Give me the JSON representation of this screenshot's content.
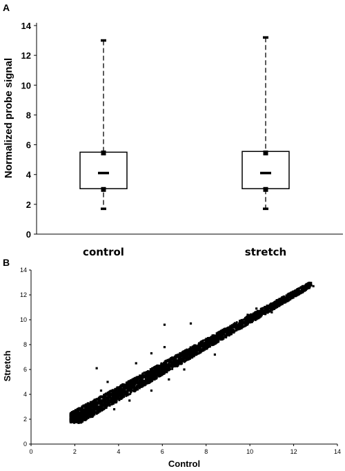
{
  "panels": [
    {
      "panel": "A",
      "chart_data": {
        "type": "box",
        "ylabel": "Normalized probe signal",
        "xlabel": "",
        "ylim": [
          0,
          14
        ],
        "yticks": [
          0,
          2,
          4,
          6,
          8,
          10,
          12,
          14
        ],
        "categories": [
          "control",
          "stretch"
        ],
        "series": [
          {
            "category": "control",
            "min": 1.7,
            "q1": 3.05,
            "median": 4.1,
            "q3": 5.5,
            "max": 13.0
          },
          {
            "category": "stretch",
            "min": 1.7,
            "q1": 3.05,
            "median": 4.1,
            "q3": 5.55,
            "max": 13.2
          }
        ],
        "extra_markers": {
          "lower_marker": 3.0,
          "upper_marker": 5.45
        },
        "grid": false
      }
    },
    {
      "panel": "B",
      "chart_data": {
        "type": "scatter",
        "xlabel": "Control",
        "ylabel": "Stretch",
        "xlim": [
          0,
          14
        ],
        "ylim": [
          0,
          14
        ],
        "xticks": [
          0,
          2,
          4,
          6,
          8,
          10,
          12,
          14
        ],
        "yticks": [
          0,
          2,
          4,
          6,
          8,
          10,
          12,
          14
        ],
        "grid": false,
        "points": [
          [
            1.8,
            2.0
          ],
          [
            1.9,
            2.1
          ],
          [
            2.0,
            1.9
          ],
          [
            2.1,
            2.3
          ],
          [
            2.2,
            2.1
          ],
          [
            2.3,
            2.5
          ],
          [
            2.4,
            2.2
          ],
          [
            2.5,
            2.6
          ],
          [
            2.6,
            2.8
          ],
          [
            2.7,
            2.5
          ],
          [
            2.8,
            3.0
          ],
          [
            2.9,
            2.7
          ],
          [
            3.0,
            3.2
          ],
          [
            3.1,
            3.0
          ],
          [
            3.2,
            3.4
          ],
          [
            3.3,
            3.1
          ],
          [
            3.4,
            3.6
          ],
          [
            3.5,
            3.3
          ],
          [
            3.6,
            3.8
          ],
          [
            3.7,
            3.5
          ],
          [
            3.8,
            4.0
          ],
          [
            3.9,
            3.7
          ],
          [
            4.0,
            4.2
          ],
          [
            4.1,
            3.9
          ],
          [
            4.2,
            4.4
          ],
          [
            4.3,
            4.1
          ],
          [
            4.4,
            4.6
          ],
          [
            4.5,
            4.3
          ],
          [
            4.6,
            4.8
          ],
          [
            4.7,
            4.5
          ],
          [
            4.8,
            5.0
          ],
          [
            4.9,
            4.7
          ],
          [
            5.0,
            5.2
          ],
          [
            5.1,
            4.9
          ],
          [
            5.2,
            5.4
          ],
          [
            5.3,
            5.1
          ],
          [
            5.4,
            5.6
          ],
          [
            5.5,
            5.3
          ],
          [
            5.6,
            5.8
          ],
          [
            5.7,
            5.5
          ],
          [
            5.8,
            6.0
          ],
          [
            5.9,
            5.7
          ],
          [
            6.0,
            6.2
          ],
          [
            6.1,
            5.9
          ],
          [
            6.2,
            6.4
          ],
          [
            6.3,
            6.1
          ],
          [
            6.4,
            6.6
          ],
          [
            6.5,
            6.3
          ],
          [
            6.6,
            6.8
          ],
          [
            6.7,
            6.5
          ],
          [
            6.8,
            7.0
          ],
          [
            6.9,
            6.7
          ],
          [
            7.0,
            7.2
          ],
          [
            7.1,
            6.9
          ],
          [
            7.2,
            7.4
          ],
          [
            7.3,
            7.1
          ],
          [
            7.4,
            7.6
          ],
          [
            7.5,
            7.3
          ],
          [
            7.6,
            7.8
          ],
          [
            7.7,
            7.5
          ],
          [
            7.8,
            8.0
          ],
          [
            7.9,
            7.7
          ],
          [
            8.0,
            8.2
          ],
          [
            8.1,
            7.9
          ],
          [
            8.2,
            8.4
          ],
          [
            8.3,
            8.1
          ],
          [
            8.4,
            8.6
          ],
          [
            8.5,
            8.3
          ],
          [
            8.6,
            8.8
          ],
          [
            8.7,
            8.5
          ],
          [
            8.8,
            9.0
          ],
          [
            8.9,
            8.7
          ],
          [
            9.0,
            9.2
          ],
          [
            9.2,
            9.1
          ],
          [
            9.4,
            9.5
          ],
          [
            9.6,
            9.4
          ],
          [
            9.8,
            9.9
          ],
          [
            10.0,
            9.8
          ],
          [
            10.2,
            10.3
          ],
          [
            10.4,
            10.2
          ],
          [
            10.6,
            10.7
          ],
          [
            10.8,
            10.6
          ],
          [
            11.0,
            11.1
          ],
          [
            11.2,
            11.0
          ],
          [
            11.4,
            11.5
          ],
          [
            11.6,
            11.4
          ],
          [
            11.8,
            12.0
          ],
          [
            12.0,
            11.9
          ],
          [
            12.2,
            12.3
          ],
          [
            12.4,
            12.2
          ],
          [
            12.6,
            12.6
          ],
          [
            12.8,
            12.8
          ],
          [
            12.9,
            12.7
          ],
          [
            3.2,
            4.3
          ],
          [
            3.5,
            5.0
          ],
          [
            3.0,
            6.1
          ],
          [
            4.8,
            6.5
          ],
          [
            5.5,
            7.3
          ],
          [
            6.1,
            7.8
          ],
          [
            7.3,
            9.7
          ],
          [
            3.8,
            2.8
          ],
          [
            4.5,
            3.5
          ],
          [
            5.5,
            4.3
          ],
          [
            6.3,
            5.2
          ],
          [
            7.0,
            6.0
          ],
          [
            8.4,
            7.2
          ],
          [
            10.3,
            10.9
          ],
          [
            9.9,
            10.4
          ],
          [
            11.0,
            10.6
          ],
          [
            2.4,
            3.1
          ],
          [
            2.2,
            1.8
          ],
          [
            2.8,
            2.2
          ],
          [
            6.1,
            9.6
          ]
        ]
      }
    }
  ]
}
